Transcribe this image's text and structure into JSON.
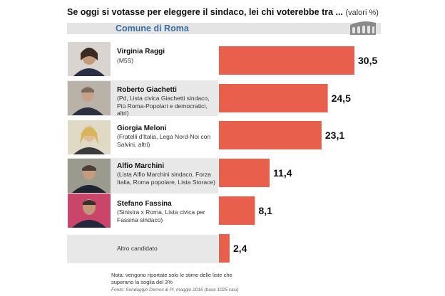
{
  "header": {
    "title": "Se oggi si votasse per eleggere il sindaco, lei chi voterebbe tra ...",
    "unit": "(valori %)",
    "subtitle": "Comune di Roma"
  },
  "icons": {
    "city": "colosseum-icon",
    "portrait": "person-photo"
  },
  "colors": {
    "bar": "#e8604c",
    "band": "#e4e4e4",
    "accent": "#3a6fa0"
  },
  "chart_data": {
    "type": "bar",
    "orientation": "horizontal",
    "title": "Se oggi si votasse per eleggere il sindaco, lei chi voterebbe tra ...",
    "subtitle": "Comune di Roma",
    "categories": [
      "Virginia Raggi",
      "Roberto Giachetti",
      "Giorgia Meloni",
      "Alfio Marchini",
      "Stefano Fassina",
      "Altro candidato"
    ],
    "parties": [
      "(M5S)",
      "(Pd, Lista civica Giachetti sindaco, Più Roma-Popolari e democratici, altri)",
      "(Fratelli d'Italia, Lega Nord-Noi con Salvini, altri)",
      "(Lista Alfio Marchini sindaco, Forza Italia, Roma popolare, Lista Storace)",
      "(Sinistra x Roma, Lista civica per Fassina sindaco)",
      ""
    ],
    "values": [
      30.5,
      24.5,
      23.1,
      11.4,
      8.1,
      2.4
    ],
    "value_labels": [
      "30,5",
      "24,5",
      "23,1",
      "11,4",
      "8,1",
      "2,4"
    ],
    "xlim": [
      0,
      30.5
    ],
    "grid": false,
    "legend": "none"
  },
  "footer": {
    "note": "Nota: vengono riportate solo le stime delle liste che superano la soglia del 3%",
    "source": "Fonte: Sondaggio Demos & Pi, maggio 2016 (base 1025 casi)"
  }
}
